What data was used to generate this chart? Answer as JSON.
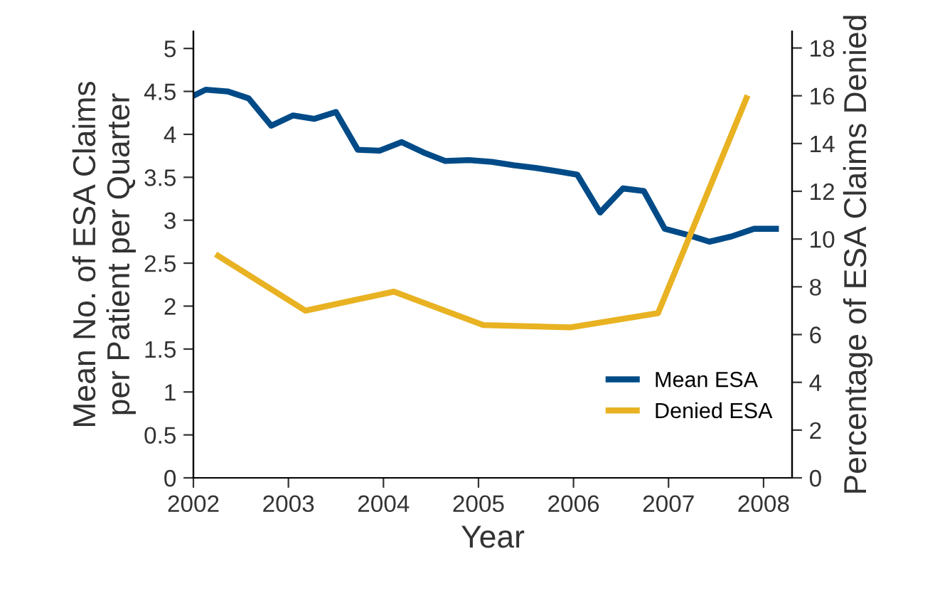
{
  "chart_data": {
    "type": "line",
    "xlabel": "Year",
    "ylabel": "Mean No. of ESA Claims\nper Patient per Quarter",
    "y2label": "Percentage of ESA Claims Denied",
    "xlim": [
      2002,
      2008.3
    ],
    "xticks": [
      2002,
      2003,
      2004,
      2005,
      2006,
      2007,
      2008
    ],
    "ylim": [
      0,
      5.2
    ],
    "yticks": [
      0,
      0.5,
      1,
      1.5,
      2,
      2.5,
      3,
      3.5,
      4,
      4.5,
      5
    ],
    "y2lim": [
      0,
      18.7
    ],
    "y2ticks": [
      0,
      2,
      4,
      6,
      8,
      10,
      12,
      14,
      16,
      18
    ],
    "legend": "bottom right",
    "grid": false,
    "marker": "none",
    "line_style": "solid",
    "series": [
      {
        "name": "Mean ESA",
        "color": "#004b87",
        "x": [
          2002.0,
          2002.13,
          2002.36,
          2002.58,
          2002.82,
          2003.05,
          2003.27,
          2003.5,
          2003.73,
          2003.96,
          2004.19,
          2004.42,
          2004.65,
          2004.9,
          2005.14,
          2005.37,
          2005.6,
          2005.83,
          2006.04,
          2006.28,
          2006.52,
          2006.74,
          2006.96,
          2007.2,
          2007.43,
          2007.66,
          2007.9,
          2008.13
        ],
        "values": [
          4.45,
          4.52,
          4.5,
          4.42,
          4.1,
          4.22,
          4.18,
          4.26,
          3.82,
          3.81,
          3.91,
          3.79,
          3.69,
          3.7,
          3.68,
          3.64,
          3.61,
          3.57,
          3.53,
          3.09,
          3.37,
          3.34,
          2.9,
          2.83,
          2.75,
          2.81,
          2.9,
          2.9
        ]
      },
      {
        "name": "Denied ESA",
        "color": "#e8b222",
        "axis": "y2",
        "x": [
          2002.26,
          2003.18,
          2004.11,
          2005.05,
          2005.97,
          2006.89,
          2007.82
        ],
        "values": [
          9.3,
          7.0,
          7.8,
          6.4,
          6.3,
          6.9,
          15.9
        ]
      }
    ]
  }
}
